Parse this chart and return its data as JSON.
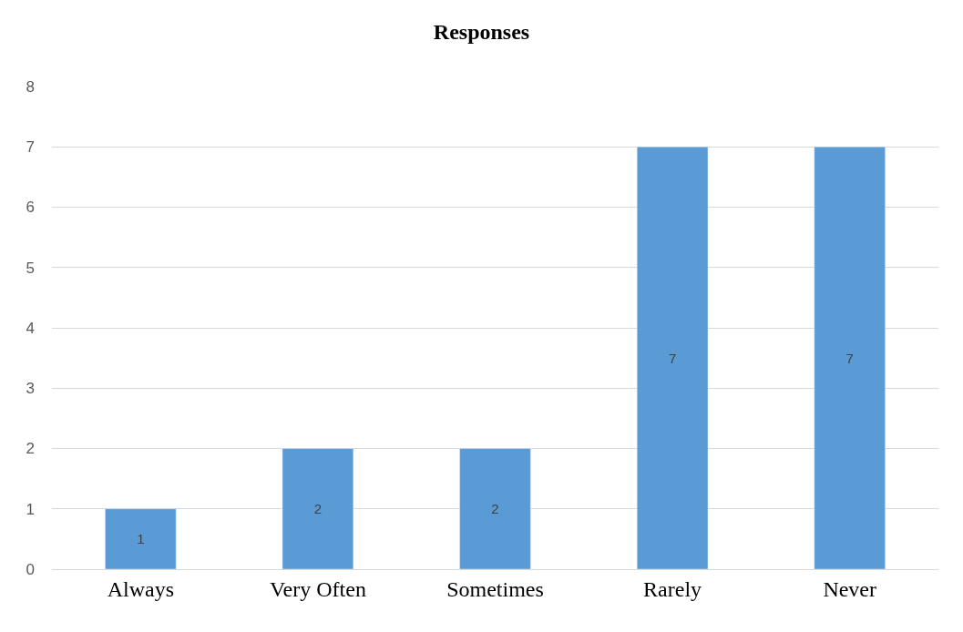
{
  "chart_data": {
    "type": "bar",
    "title": "Responses",
    "categories": [
      "Always",
      "Very Often",
      "Sometimes",
      "Rarely",
      "Never"
    ],
    "values": [
      1,
      2,
      2,
      7,
      7
    ],
    "color": "#5b9bd5",
    "ylim": [
      0,
      8
    ],
    "yticks": [
      0,
      1,
      2,
      3,
      4,
      5,
      6,
      7,
      8
    ],
    "grid": "y",
    "data_labels": true
  }
}
